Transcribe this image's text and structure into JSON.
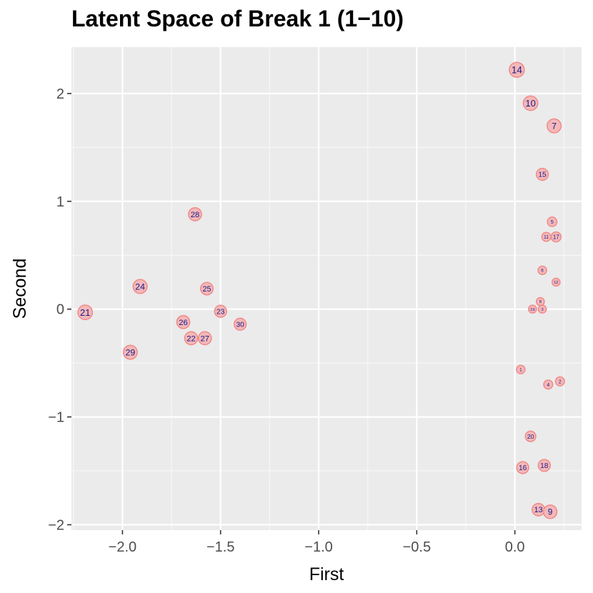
{
  "chart_data": {
    "type": "scatter",
    "title": "Latent Space of Break 1 (1−10)",
    "xlabel": "First",
    "ylabel": "Second",
    "xlim": [
      -2.26,
      0.34
    ],
    "ylim": [
      -2.05,
      2.43
    ],
    "x_ticks": [
      -2.0,
      -1.5,
      -1.0,
      -0.5,
      0.0
    ],
    "x_tick_labels": [
      "−2.0",
      "−1.5",
      "−1.0",
      "−0.5",
      "0.0"
    ],
    "y_ticks": [
      -2,
      -1,
      0,
      1,
      2
    ],
    "y_tick_labels": [
      "−2",
      "−1",
      "0",
      "1",
      "2"
    ],
    "grid": true,
    "point_fill": "#f4b8b8",
    "point_stroke": "#f08a8a",
    "label_color": "#1a1a8a",
    "panel_color": "#ebebeb",
    "points": [
      {
        "label": "14",
        "x": 0.01,
        "y": 2.22,
        "size": 1.0
      },
      {
        "label": "10",
        "x": 0.08,
        "y": 1.91,
        "size": 0.95
      },
      {
        "label": "7",
        "x": 0.2,
        "y": 1.7,
        "size": 0.9
      },
      {
        "label": "15",
        "x": 0.14,
        "y": 1.25,
        "size": 0.7
      },
      {
        "label": "5",
        "x": 0.19,
        "y": 0.81,
        "size": 0.45
      },
      {
        "label": "11",
        "x": 0.16,
        "y": 0.67,
        "size": 0.4
      },
      {
        "label": "17",
        "x": 0.21,
        "y": 0.67,
        "size": 0.5
      },
      {
        "label": "6",
        "x": 0.14,
        "y": 0.36,
        "size": 0.35
      },
      {
        "label": "12",
        "x": 0.21,
        "y": 0.25,
        "size": 0.3
      },
      {
        "label": "8",
        "x": 0.13,
        "y": 0.07,
        "size": 0.3
      },
      {
        "label": "19",
        "x": 0.09,
        "y": 0.0,
        "size": 0.3
      },
      {
        "label": "3",
        "x": 0.14,
        "y": 0.0,
        "size": 0.3
      },
      {
        "label": "1",
        "x": 0.03,
        "y": -0.56,
        "size": 0.35
      },
      {
        "label": "4",
        "x": 0.17,
        "y": -0.7,
        "size": 0.4
      },
      {
        "label": "2",
        "x": 0.23,
        "y": -0.67,
        "size": 0.4
      },
      {
        "label": "20",
        "x": 0.08,
        "y": -1.18,
        "size": 0.55
      },
      {
        "label": "18",
        "x": 0.15,
        "y": -1.45,
        "size": 0.7
      },
      {
        "label": "16",
        "x": 0.04,
        "y": -1.47,
        "size": 0.7
      },
      {
        "label": "13",
        "x": 0.12,
        "y": -1.86,
        "size": 0.75
      },
      {
        "label": "9",
        "x": 0.18,
        "y": -1.88,
        "size": 0.85
      },
      {
        "label": "21",
        "x": -2.19,
        "y": -0.03,
        "size": 0.95
      },
      {
        "label": "24",
        "x": -1.91,
        "y": 0.21,
        "size": 0.9
      },
      {
        "label": "29",
        "x": -1.96,
        "y": -0.4,
        "size": 0.9
      },
      {
        "label": "28",
        "x": -1.63,
        "y": 0.88,
        "size": 0.8
      },
      {
        "label": "25",
        "x": -1.57,
        "y": 0.19,
        "size": 0.75
      },
      {
        "label": "26",
        "x": -1.69,
        "y": -0.12,
        "size": 0.8
      },
      {
        "label": "23",
        "x": -1.5,
        "y": -0.02,
        "size": 0.7
      },
      {
        "label": "30",
        "x": -1.4,
        "y": -0.14,
        "size": 0.7
      },
      {
        "label": "22",
        "x": -1.65,
        "y": -0.27,
        "size": 0.8
      },
      {
        "label": "27",
        "x": -1.58,
        "y": -0.27,
        "size": 0.8
      }
    ]
  }
}
